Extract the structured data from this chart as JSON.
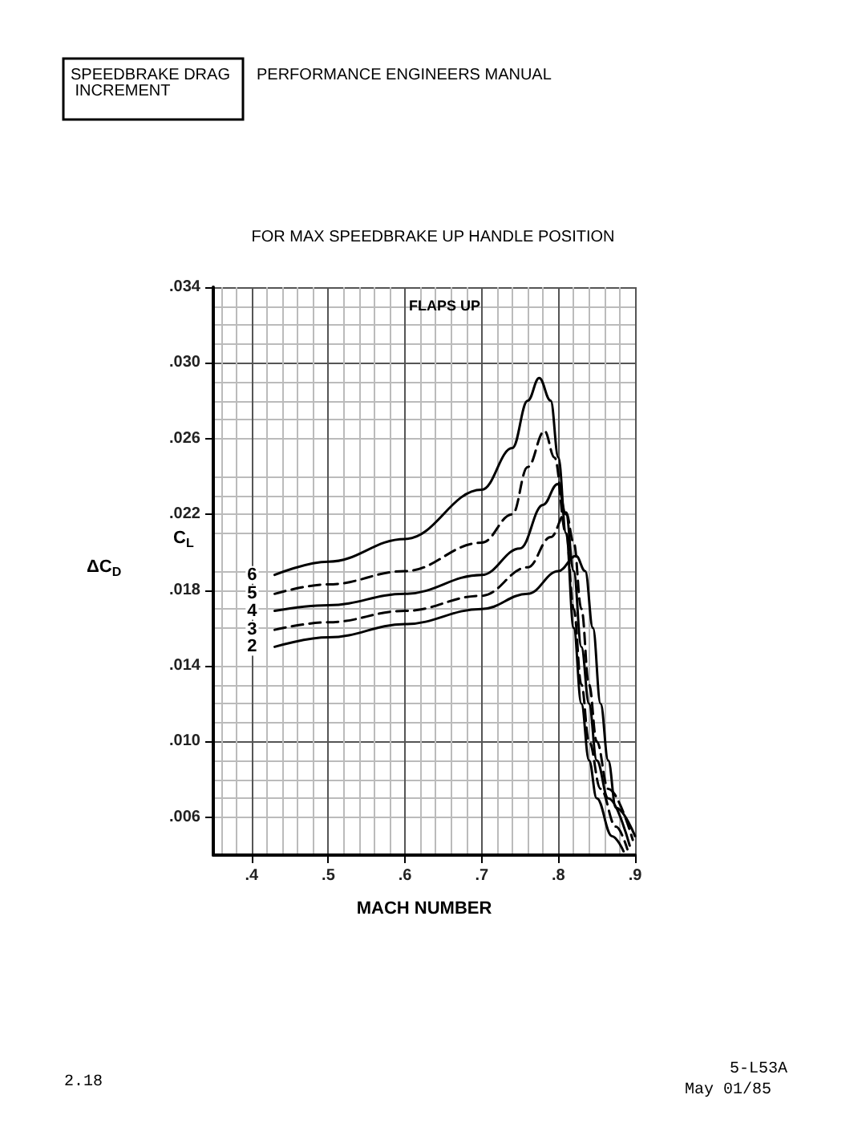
{
  "chart_data": {
    "type": "line",
    "title": "FOR MAX SPEEDBRAKE UP HANDLE POSITION",
    "xlabel": "MACH NUMBER",
    "ylabel": "ΔC$_{D}$",
    "legend_title": "C$_{L}$",
    "annotations": [
      "FLAPS UP",
      "SPEEDBRAKE DRAG INCREMENT",
      "PERFORMANCE ENGINEERS MANUAL",
      "2.18",
      "5-L53A",
      "May 01/85"
    ],
    "xlim": [
      0.35,
      0.9
    ],
    "xticks": [
      {
        "value": 0.4,
        "label": ".4"
      },
      {
        "value": 0.5,
        "label": ".5"
      },
      {
        "value": 0.6,
        "label": ".6"
      },
      {
        "value": 0.7,
        "label": ".7"
      },
      {
        "value": 0.8,
        "label": ".8"
      },
      {
        "value": 0.9,
        "label": ".9"
      }
    ],
    "ylim": [
      0.004,
      0.034
    ],
    "yticks": [
      {
        "value": 0.006,
        "label": ".006"
      },
      {
        "value": 0.01,
        "label": ".010"
      },
      {
        "value": 0.014,
        "label": ".014"
      },
      {
        "value": 0.018,
        "label": ".018"
      },
      {
        "value": 0.022,
        "label": ".022"
      },
      {
        "value": 0.026,
        "label": ".026"
      },
      {
        "value": 0.03,
        "label": ".030"
      },
      {
        "value": 0.034,
        "label": ".034"
      }
    ],
    "grid": true,
    "legend": false,
    "marker": "none",
    "series": [
      {
        "name": "6",
        "color": "#000000",
        "line_style": "solid",
        "x": [
          0.43,
          0.5,
          0.6,
          0.7,
          0.74,
          0.76,
          0.775,
          0.79,
          0.8,
          0.81,
          0.82,
          0.83,
          0.84,
          0.85,
          0.87,
          0.885
        ],
        "values": [
          0.0188,
          0.0195,
          0.0207,
          0.0233,
          0.0255,
          0.028,
          0.0292,
          0.028,
          0.025,
          0.021,
          0.016,
          0.012,
          0.009,
          0.007,
          0.005,
          0.0042
        ]
      },
      {
        "name": "5",
        "color": "#000000",
        "line_style": "dashed",
        "x": [
          0.43,
          0.5,
          0.6,
          0.7,
          0.74,
          0.76,
          0.782,
          0.795,
          0.81,
          0.82,
          0.83,
          0.84,
          0.855,
          0.875,
          0.89
        ],
        "values": [
          0.0178,
          0.0183,
          0.019,
          0.0205,
          0.022,
          0.0245,
          0.0264,
          0.025,
          0.021,
          0.017,
          0.013,
          0.01,
          0.0075,
          0.0055,
          0.0043
        ]
      },
      {
        "name": "4",
        "color": "#000000",
        "line_style": "solid",
        "x": [
          0.43,
          0.5,
          0.6,
          0.7,
          0.75,
          0.78,
          0.799,
          0.81,
          0.82,
          0.83,
          0.84,
          0.85,
          0.865,
          0.893
        ],
        "values": [
          0.0169,
          0.0172,
          0.0178,
          0.0188,
          0.0202,
          0.0225,
          0.0236,
          0.022,
          0.019,
          0.015,
          0.012,
          0.009,
          0.007,
          0.0045
        ]
      },
      {
        "name": "3",
        "color": "#000000",
        "line_style": "dashed",
        "x": [
          0.43,
          0.5,
          0.6,
          0.7,
          0.76,
          0.79,
          0.81,
          0.82,
          0.83,
          0.84,
          0.85,
          0.865,
          0.897
        ],
        "values": [
          0.0159,
          0.0163,
          0.0169,
          0.0177,
          0.0192,
          0.0208,
          0.0221,
          0.0205,
          0.017,
          0.013,
          0.01,
          0.0075,
          0.0048
        ]
      },
      {
        "name": "2",
        "color": "#000000",
        "line_style": "solid",
        "x": [
          0.43,
          0.5,
          0.6,
          0.7,
          0.76,
          0.8,
          0.823,
          0.835,
          0.845,
          0.855,
          0.865,
          0.875,
          0.9
        ],
        "values": [
          0.015,
          0.0155,
          0.0162,
          0.017,
          0.0178,
          0.019,
          0.0198,
          0.019,
          0.016,
          0.012,
          0.009,
          0.0065,
          0.005
        ]
      }
    ]
  }
}
